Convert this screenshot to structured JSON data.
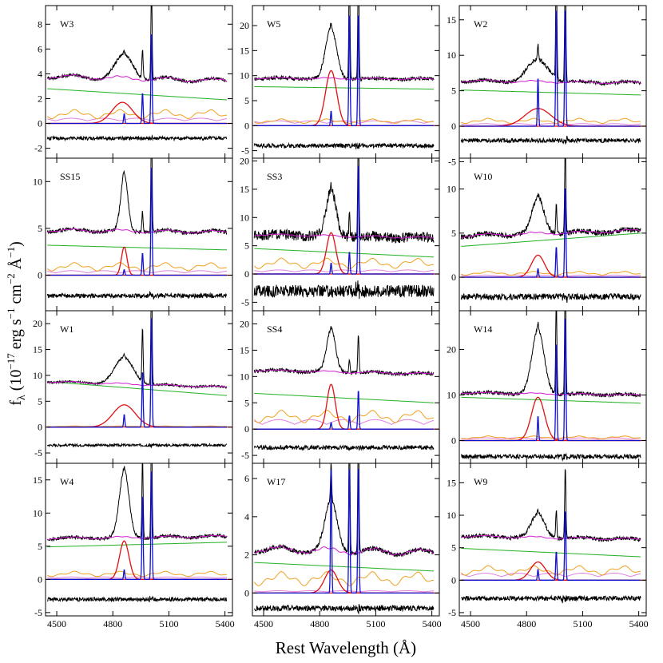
{
  "figure": {
    "xlabel": "Rest Wavelength (Å)",
    "ylabel_main": "f",
    "ylabel_sub": "λ",
    "ylabel_rest": " (10",
    "ylabel_exp": "−17",
    "ylabel_units_1": " erg s",
    "ylabel_exp2": "−1",
    "ylabel_units_2": " cm",
    "ylabel_exp3": "−2",
    "ylabel_units_3": " Å",
    "ylabel_exp4": "−1",
    "ylabel_close": ")"
  },
  "colors": {
    "spectrum": "#000000",
    "model": "#d11ad1",
    "continuum": "#22b022",
    "feii": "#f0a020",
    "host": "#e080e0",
    "broad": "#e01010",
    "narrow": "#1010d0"
  },
  "chart_data": [
    {
      "type": "line",
      "label": "W3",
      "row": 0,
      "col": 0,
      "ylim": [
        -2.8,
        9.5
      ],
      "yticks": [
        -2,
        0,
        2,
        4,
        6,
        8
      ],
      "xticks": [
        4500,
        4800,
        5100,
        5400
      ],
      "xlim": [
        4440,
        5440
      ],
      "base": 3.8,
      "cont": [
        2.8,
        1.9
      ],
      "feii": 1.0,
      "host": 0.35,
      "broad_peak": 1.7,
      "broad_width": 55,
      "broad_shift": -10,
      "narrow_hb": 0.8,
      "oiii_4959": 2.5,
      "oiii_5007": 7.5,
      "resid": -1.2,
      "noise": 0.12,
      "bump": 1.8,
      "model_peak": 2.3
    },
    {
      "type": "line",
      "label": "W5",
      "row": 0,
      "col": 1,
      "ylim": [
        -6.5,
        24
      ],
      "yticks": [
        -5,
        0,
        5,
        10,
        15,
        20
      ],
      "xticks": [
        4500,
        4800,
        5100,
        5400
      ],
      "xlim": [
        4440,
        5440
      ],
      "base": 9.5,
      "cont": [
        7.8,
        7.3
      ],
      "feii": 1.2,
      "host": 0.8,
      "broad_peak": 11,
      "broad_width": 30,
      "broad_shift": 0,
      "narrow_hb": 3,
      "oiii_4959": 23,
      "oiii_5007": 23,
      "resid": -4,
      "noise": 0.35,
      "bump": 10,
      "model_peak": 11
    },
    {
      "type": "line",
      "label": "W2",
      "row": 0,
      "col": 2,
      "ylim": [
        -4.5,
        17
      ],
      "yticks": [
        -5,
        0,
        5,
        10,
        15
      ],
      "xticks": [
        4500,
        4800,
        5100,
        5400
      ],
      "xlim": [
        4440,
        5440
      ],
      "base": 6.4,
      "cont": [
        5.1,
        4.4
      ],
      "feii": 1.0,
      "host": 0.3,
      "broad_peak": 2.5,
      "broad_width": 70,
      "broad_shift": 0,
      "narrow_hb": 7,
      "oiii_4959": 17,
      "oiii_5007": 17,
      "resid": -2,
      "noise": 0.25,
      "bump": 3,
      "model_peak": 7
    },
    {
      "type": "line",
      "label": "SS15",
      "row": 1,
      "col": 0,
      "ylim": [
        -3.8,
        12.5
      ],
      "yticks": [
        0,
        5,
        10
      ],
      "xticks": [
        4500,
        4800,
        5100,
        5400
      ],
      "xlim": [
        4440,
        5440
      ],
      "base": 4.8,
      "cont": [
        3.2,
        2.7
      ],
      "feii": 1.2,
      "host": 0.4,
      "broad_peak": 3.0,
      "broad_width": 15,
      "broad_shift": 0,
      "narrow_hb": 0.6,
      "oiii_4959": 2.4,
      "oiii_5007": 12,
      "resid": -2.2,
      "noise": 0.2,
      "bump": 6,
      "model_peak": 6
    },
    {
      "type": "line",
      "label": "SS3",
      "row": 1,
      "col": 1,
      "ylim": [
        -6.5,
        20.5
      ],
      "yticks": [
        -5,
        0,
        5,
        10,
        15,
        20
      ],
      "xticks": [
        4500,
        4800,
        5100,
        5400
      ],
      "xlim": [
        4440,
        5440
      ],
      "base": 7.0,
      "cont": [
        4.5,
        3.0
      ],
      "feii": 2.5,
      "host": 0.6,
      "broad_peak": 7.3,
      "broad_width": 25,
      "broad_shift": 0,
      "narrow_hb": 2,
      "oiii_4959": 4,
      "oiii_5007": 20,
      "resid": -3,
      "noise": 0.9,
      "bump": 8,
      "model_peak": 8
    },
    {
      "type": "line",
      "label": "W10",
      "row": 1,
      "col": 2,
      "ylim": [
        -3.8,
        13.5
      ],
      "yticks": [
        0,
        5,
        10
      ],
      "xticks": [
        4500,
        4800,
        5100,
        5400
      ],
      "xlim": [
        4440,
        5440
      ],
      "base": 4.7,
      "cont": [
        3.5,
        5.0
      ],
      "feii": 0.6,
      "host": 0.2,
      "broad_peak": 2.5,
      "broad_width": 35,
      "broad_shift": 0,
      "narrow_hb": 1,
      "oiii_4959": 3.5,
      "oiii_5007": 10.5,
      "resid": -2.2,
      "noise": 0.3,
      "bump": 4,
      "model_peak": 4
    },
    {
      "type": "line",
      "label": "W1",
      "row": 2,
      "col": 0,
      "ylim": [
        -7,
        22.5
      ],
      "yticks": [
        -5,
        0,
        5,
        10,
        15,
        20
      ],
      "xticks": [
        4500,
        4800,
        5100,
        5400
      ],
      "xlim": [
        4440,
        5440
      ],
      "base": 8.8,
      "cont": [
        8.8,
        6.1
      ],
      "feii": 0.2,
      "host": 0.1,
      "broad_peak": 4.3,
      "broad_width": 60,
      "broad_shift": 0,
      "narrow_hb": 2.5,
      "oiii_4959": 11,
      "oiii_5007": 22,
      "resid": -3.5,
      "noise": 0.2,
      "bump": 5,
      "model_peak": 6
    },
    {
      "type": "line",
      "label": "SS4",
      "row": 2,
      "col": 1,
      "ylim": [
        -6.5,
        22.5
      ],
      "yticks": [
        -5,
        0,
        5,
        10,
        15,
        20
      ],
      "xticks": [
        4500,
        4800,
        5100,
        5400
      ],
      "xlim": [
        4440,
        5440
      ],
      "base": 11.2,
      "cont": [
        6.8,
        5.0
      ],
      "feii": 3.2,
      "host": 1.5,
      "broad_peak": 8.5,
      "broad_width": 22,
      "broad_shift": 0,
      "narrow_hb": 1.3,
      "oiii_4959": 2.6,
      "oiii_5007": 7.5,
      "resid": -3.5,
      "noise": 0.35,
      "bump": 8,
      "model_peak": 8.5
    },
    {
      "type": "line",
      "label": "W14",
      "row": 2,
      "col": 2,
      "ylim": [
        -5,
        28.5
      ],
      "yticks": [
        0,
        10,
        20
      ],
      "xticks": [
        4500,
        4800,
        5100,
        5400
      ],
      "xlim": [
        4440,
        5440
      ],
      "base": 10.5,
      "cont": [
        9.5,
        8.2
      ],
      "feii": 0.9,
      "host": 0.5,
      "broad_peak": 9.5,
      "broad_width": 35,
      "broad_shift": 0,
      "narrow_hb": 5.5,
      "oiii_4959": 22,
      "oiii_5007": 28,
      "resid": -3.5,
      "noise": 0.4,
      "bump": 14,
      "model_peak": 15
    },
    {
      "type": "line",
      "label": "W4",
      "row": 3,
      "col": 0,
      "ylim": [
        -5.5,
        17.5
      ],
      "yticks": [
        -5,
        0,
        5,
        10,
        15
      ],
      "xticks": [
        4500,
        4800,
        5100,
        5400
      ],
      "xlim": [
        4440,
        5440
      ],
      "base": 6.2,
      "cont": [
        4.9,
        5.6
      ],
      "feii": 1.1,
      "host": 0.3,
      "broad_peak": 5.8,
      "broad_width": 25,
      "broad_shift": 0,
      "narrow_hb": 1.5,
      "oiii_4959": 13,
      "oiii_5007": 17,
      "resid": -3,
      "noise": 0.25,
      "bump": 10,
      "model_peak": 10
    },
    {
      "type": "line",
      "label": "W17",
      "row": 3,
      "col": 1,
      "ylim": [
        -1.2,
        6.8
      ],
      "yticks": [
        0,
        2,
        4,
        6
      ],
      "xticks": [
        4500,
        4800,
        5100,
        5400
      ],
      "xlim": [
        4440,
        5440
      ],
      "base": 2.3,
      "cont": [
        1.6,
        1.15
      ],
      "feii": 1.0,
      "host": 0.1,
      "broad_peak": 1.2,
      "broad_width": 35,
      "broad_shift": 0,
      "narrow_hb": 6.8,
      "oiii_4959": 6.8,
      "oiii_5007": 6.8,
      "resid": -0.8,
      "noise": 0.12,
      "bump": 2.5,
      "model_peak": 3.5
    },
    {
      "type": "line",
      "label": "W9",
      "row": 3,
      "col": 2,
      "ylim": [
        -5.5,
        18
      ],
      "yticks": [
        -5,
        0,
        5,
        10,
        15
      ],
      "xticks": [
        4500,
        4800,
        5100,
        5400
      ],
      "xlim": [
        4440,
        5440
      ],
      "base": 6.8,
      "cont": [
        4.9,
        3.6
      ],
      "feii": 2.0,
      "host": 0.9,
      "broad_peak": 2.8,
      "broad_width": 40,
      "broad_shift": 0,
      "narrow_hb": 1.7,
      "oiii_4959": 4.5,
      "oiii_5007": 11,
      "resid": -2.8,
      "noise": 0.3,
      "bump": 3.5,
      "model_peak": 4
    }
  ]
}
